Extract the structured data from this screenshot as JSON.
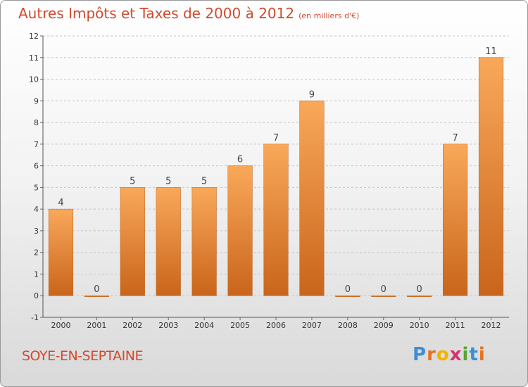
{
  "title": "Autres Impôts et Taxes de 2000 à 2012",
  "subtitle": "(en milliers d'€)",
  "commune": "SOYE-EN-SEPTAINE",
  "logo": {
    "letters": [
      "P",
      "r",
      "o",
      "x",
      "i",
      "t",
      "i"
    ],
    "colors": [
      "#3b8fd6",
      "#e8711f",
      "#f0b400",
      "#d6336c",
      "#58a534",
      "#3b8fd6",
      "#e8711f"
    ]
  },
  "colors": {
    "bar_top": "#f9a85a",
    "bar_bottom": "#c9651b",
    "title": "#d2492c"
  },
  "chart_data": {
    "type": "bar",
    "title": "Autres Impôts et Taxes de 2000 à 2012",
    "categories": [
      "2000",
      "2001",
      "2002",
      "2003",
      "2004",
      "2005",
      "2006",
      "2007",
      "2008",
      "2009",
      "2010",
      "2011",
      "2012"
    ],
    "values": [
      4,
      0,
      5,
      5,
      5,
      6,
      7,
      9,
      0,
      0,
      0,
      7,
      11
    ],
    "ylim": [
      -1,
      12
    ],
    "yticks": [
      -1,
      0,
      1,
      2,
      3,
      4,
      5,
      6,
      7,
      8,
      9,
      10,
      11,
      12
    ],
    "ytick_labels": [
      "-1",
      "0",
      "1",
      "2",
      "3",
      "4",
      "5",
      "6",
      "7",
      "8",
      "9",
      "10",
      "11",
      "12"
    ],
    "grid": true
  }
}
